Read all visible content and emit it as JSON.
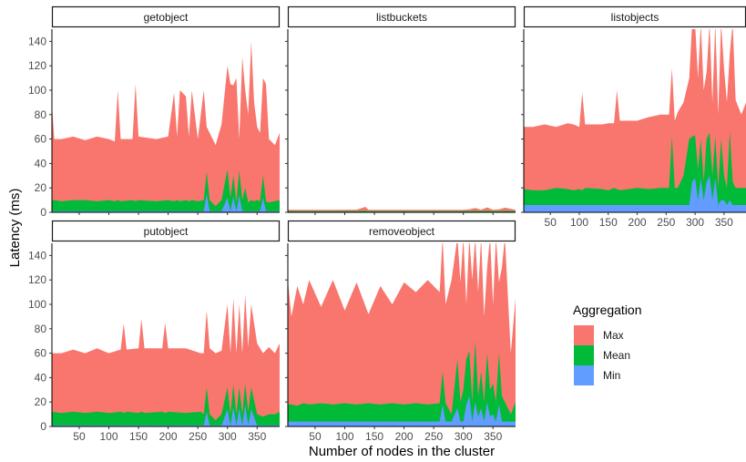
{
  "chart_data": {
    "type": "area",
    "stacked": true,
    "xlabel": "Number of nodes in the cluster",
    "ylabel": "Latency (ms)",
    "ylim": [
      0,
      150
    ],
    "xlim": [
      4,
      388
    ],
    "y_ticks": [
      0,
      20,
      40,
      60,
      80,
      100,
      120,
      140
    ],
    "x_ticks": [
      50,
      100,
      150,
      200,
      250,
      300,
      350
    ],
    "grid": false,
    "legend": {
      "title": "Aggregation",
      "position": "right",
      "entries": [
        {
          "name": "Max",
          "color": "#F8766D"
        },
        {
          "name": "Mean",
          "color": "#00BA38"
        },
        {
          "name": "Min",
          "color": "#619CFF"
        }
      ]
    },
    "facets": [
      {
        "title": "getobject",
        "x": [
          4,
          8,
          20,
          40,
          60,
          80,
          100,
          110,
          115,
          120,
          140,
          145,
          150,
          180,
          200,
          210,
          215,
          220,
          230,
          235,
          240,
          250,
          260,
          265,
          270,
          280,
          290,
          300,
          305,
          310,
          315,
          320,
          325,
          330,
          335,
          340,
          345,
          350,
          355,
          360,
          365,
          370,
          380,
          388
        ],
        "max": [
          88,
          60,
          60,
          62,
          59,
          62,
          60,
          58,
          100,
          60,
          60,
          105,
          62,
          60,
          62,
          98,
          62,
          100,
          95,
          62,
          100,
          60,
          100,
          70,
          65,
          55,
          72,
          120,
          105,
          104,
          110,
          60,
          127,
          100,
          80,
          140,
          90,
          70,
          65,
          110,
          105,
          60,
          55,
          65
        ],
        "mean": [
          10,
          10,
          9,
          10,
          10,
          9,
          10,
          9,
          10,
          9,
          10,
          9,
          10,
          9,
          10,
          9,
          10,
          9,
          10,
          9,
          10,
          9,
          10,
          33,
          10,
          5,
          10,
          35,
          12,
          30,
          8,
          34,
          10,
          20,
          8,
          10,
          9,
          10,
          9,
          30,
          9,
          8,
          9,
          10
        ],
        "min": [
          1,
          1,
          1,
          1,
          1,
          1,
          1,
          1,
          1,
          1,
          1,
          1,
          1,
          1,
          1,
          1,
          1,
          1,
          1,
          1,
          1,
          1,
          1,
          15,
          1,
          1,
          1,
          12,
          1,
          13,
          1,
          14,
          1,
          1,
          1,
          1,
          1,
          1,
          1,
          12,
          1,
          1,
          1,
          1
        ]
      },
      {
        "title": "listbuckets",
        "x": [
          4,
          40,
          80,
          120,
          135,
          140,
          180,
          220,
          260,
          300,
          310,
          320,
          330,
          340,
          350,
          360,
          370,
          388
        ],
        "max": [
          2.0,
          2.0,
          2.0,
          2.2,
          4.5,
          2.0,
          2.0,
          2.0,
          2.0,
          2.0,
          2.5,
          3.5,
          2.2,
          4.0,
          2.0,
          2.5,
          3.8,
          2.0
        ],
        "mean": [
          1.0,
          1.0,
          1.0,
          1.0,
          1.2,
          1.0,
          1.0,
          1.0,
          1.0,
          1.0,
          1.0,
          1.2,
          1.0,
          1.2,
          1.0,
          1.0,
          1.2,
          1.0
        ],
        "min": [
          0.4,
          0.4,
          0.4,
          0.4,
          0.4,
          0.4,
          0.4,
          0.4,
          0.4,
          0.4,
          0.4,
          0.4,
          0.4,
          0.4,
          0.4,
          0.4,
          0.4,
          0.4
        ]
      },
      {
        "title": "listobjects",
        "x": [
          4,
          20,
          40,
          60,
          80,
          90,
          100,
          105,
          110,
          140,
          150,
          160,
          165,
          170,
          200,
          220,
          240,
          255,
          260,
          265,
          270,
          280,
          290,
          295,
          300,
          305,
          310,
          315,
          320,
          325,
          330,
          335,
          340,
          345,
          350,
          355,
          360,
          365,
          370,
          380,
          388
        ],
        "max": [
          70,
          70,
          72,
          70,
          73,
          72,
          70,
          98,
          72,
          72,
          73,
          73,
          100,
          75,
          75,
          78,
          80,
          80,
          118,
          75,
          82,
          90,
          110,
          155,
          155,
          110,
          155,
          100,
          115,
          155,
          90,
          155,
          80,
          155,
          118,
          90,
          130,
          155,
          92,
          80,
          90
        ],
        "mean": [
          19,
          18,
          18,
          20,
          19,
          18,
          19,
          18,
          20,
          19,
          18,
          20,
          19,
          18,
          20,
          19,
          20,
          20,
          62,
          20,
          20,
          30,
          60,
          62,
          63,
          35,
          60,
          25,
          60,
          65,
          30,
          62,
          20,
          60,
          30,
          20,
          66,
          25,
          20,
          20,
          20
        ],
        "min": [
          6,
          6,
          6,
          6,
          6,
          6,
          6,
          6,
          6,
          6,
          6,
          6,
          6,
          6,
          6,
          6,
          6,
          6,
          6,
          6,
          6,
          6,
          6,
          25,
          28,
          10,
          28,
          10,
          25,
          30,
          10,
          28,
          6,
          10,
          10,
          6,
          10,
          6,
          6,
          6,
          6
        ]
      },
      {
        "title": "putobject",
        "x": [
          4,
          20,
          40,
          60,
          80,
          100,
          120,
          125,
          130,
          150,
          155,
          160,
          190,
          195,
          200,
          230,
          255,
          260,
          265,
          270,
          280,
          290,
          300,
          305,
          310,
          315,
          320,
          325,
          330,
          335,
          340,
          350,
          360,
          370,
          380,
          388
        ],
        "max": [
          60,
          60,
          63,
          60,
          64,
          60,
          63,
          84,
          63,
          64,
          88,
          64,
          64,
          85,
          64,
          64,
          60,
          60,
          95,
          64,
          60,
          62,
          100,
          60,
          105,
          60,
          100,
          60,
          108,
          65,
          100,
          68,
          60,
          65,
          60,
          68
        ],
        "mean": [
          12,
          11,
          12,
          11,
          12,
          11,
          12,
          11,
          12,
          11,
          12,
          11,
          12,
          11,
          12,
          11,
          12,
          10,
          32,
          10,
          5,
          10,
          32,
          10,
          34,
          10,
          32,
          10,
          35,
          12,
          32,
          10,
          8,
          10,
          10,
          12
        ],
        "min": [
          1,
          1,
          1,
          1,
          1,
          1,
          1,
          1,
          1,
          1,
          1,
          1,
          1,
          1,
          1,
          1,
          1,
          1,
          12,
          1,
          1,
          1,
          14,
          1,
          16,
          1,
          15,
          1,
          18,
          1,
          14,
          1,
          1,
          1,
          1,
          1
        ]
      },
      {
        "title": "removeobject",
        "x": [
          4,
          10,
          20,
          30,
          40,
          60,
          80,
          100,
          120,
          140,
          160,
          180,
          200,
          220,
          240,
          260,
          265,
          270,
          280,
          290,
          295,
          300,
          305,
          310,
          315,
          320,
          325,
          330,
          335,
          340,
          345,
          350,
          355,
          360,
          365,
          370,
          380,
          388
        ],
        "max": [
          120,
          90,
          115,
          100,
          120,
          98,
          120,
          95,
          118,
          92,
          115,
          100,
          118,
          110,
          120,
          110,
          155,
          100,
          120,
          155,
          118,
          155,
          100,
          155,
          120,
          155,
          110,
          155,
          90,
          130,
          155,
          100,
          155,
          118,
          130,
          155,
          60,
          105
        ],
        "mean": [
          18,
          18,
          17,
          19,
          18,
          19,
          18,
          19,
          18,
          19,
          18,
          19,
          18,
          19,
          18,
          19,
          45,
          19,
          10,
          55,
          20,
          30,
          55,
          62,
          20,
          70,
          25,
          45,
          20,
          60,
          30,
          35,
          20,
          60,
          25,
          20,
          10,
          20
        ],
        "min": [
          4,
          4,
          4,
          4,
          4,
          4,
          4,
          4,
          4,
          4,
          4,
          4,
          4,
          4,
          4,
          4,
          18,
          4,
          4,
          15,
          4,
          4,
          18,
          25,
          4,
          20,
          8,
          15,
          4,
          20,
          8,
          10,
          4,
          18,
          4,
          4,
          4,
          4
        ]
      }
    ]
  }
}
